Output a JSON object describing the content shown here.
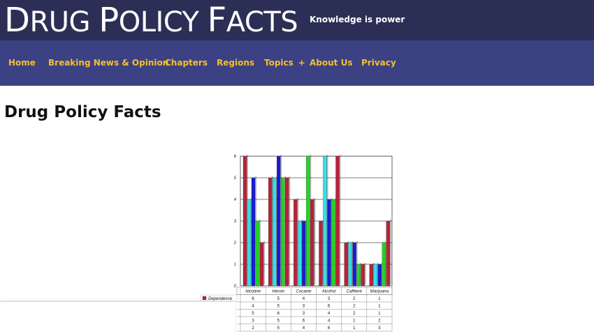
{
  "site": {
    "title_parts": [
      {
        "text": "D",
        "big": true
      },
      {
        "text": "RUG ",
        "big": false
      },
      {
        "text": "P",
        "big": true
      },
      {
        "text": "OLICY ",
        "big": false
      },
      {
        "text": "F",
        "big": true
      },
      {
        "text": "ACTS",
        "big": false
      }
    ],
    "tagline": "Knowledge is power"
  },
  "nav": {
    "items": [
      {
        "label": "Home"
      },
      {
        "label": "Breaking News & Opinion"
      },
      {
        "label": "Chapters"
      },
      {
        "label": "Regions"
      },
      {
        "label": "Topics"
      },
      {
        "label": "About Us"
      },
      {
        "label": "Privacy"
      }
    ],
    "topics_expand_symbol": "+"
  },
  "page": {
    "title": "Drug Policy Facts"
  },
  "colors": {
    "topbar": "#2b2f55",
    "navbar": "#3c4183",
    "nav_text": "#f2c12e"
  },
  "chart_data": {
    "type": "bar",
    "categories": [
      "Nicotine",
      "Heroin",
      "Cocaine",
      "Alcohol",
      "Caffeine",
      "Marijuana"
    ],
    "ylim": [
      0,
      6
    ],
    "yticks": [
      "0",
      "1",
      "2",
      "3",
      "4",
      "5",
      "6"
    ],
    "grid": true,
    "series": [
      {
        "name": "Dependence",
        "color": "#b8223a",
        "values": [
          6,
          5,
          4,
          3,
          2,
          1
        ]
      },
      {
        "name": "",
        "color": "#33e0e8",
        "values": [
          4,
          5,
          3,
          6,
          2,
          1
        ]
      },
      {
        "name": "",
        "color": "#1a1ad8",
        "values": [
          5,
          6,
          3,
          4,
          2,
          1
        ]
      },
      {
        "name": "",
        "color": "#22d622",
        "values": [
          3,
          5,
          6,
          4,
          1,
          2
        ]
      },
      {
        "name": "",
        "color": "#b8223a",
        "values": [
          2,
          5,
          4,
          6,
          1,
          3
        ]
      }
    ]
  }
}
